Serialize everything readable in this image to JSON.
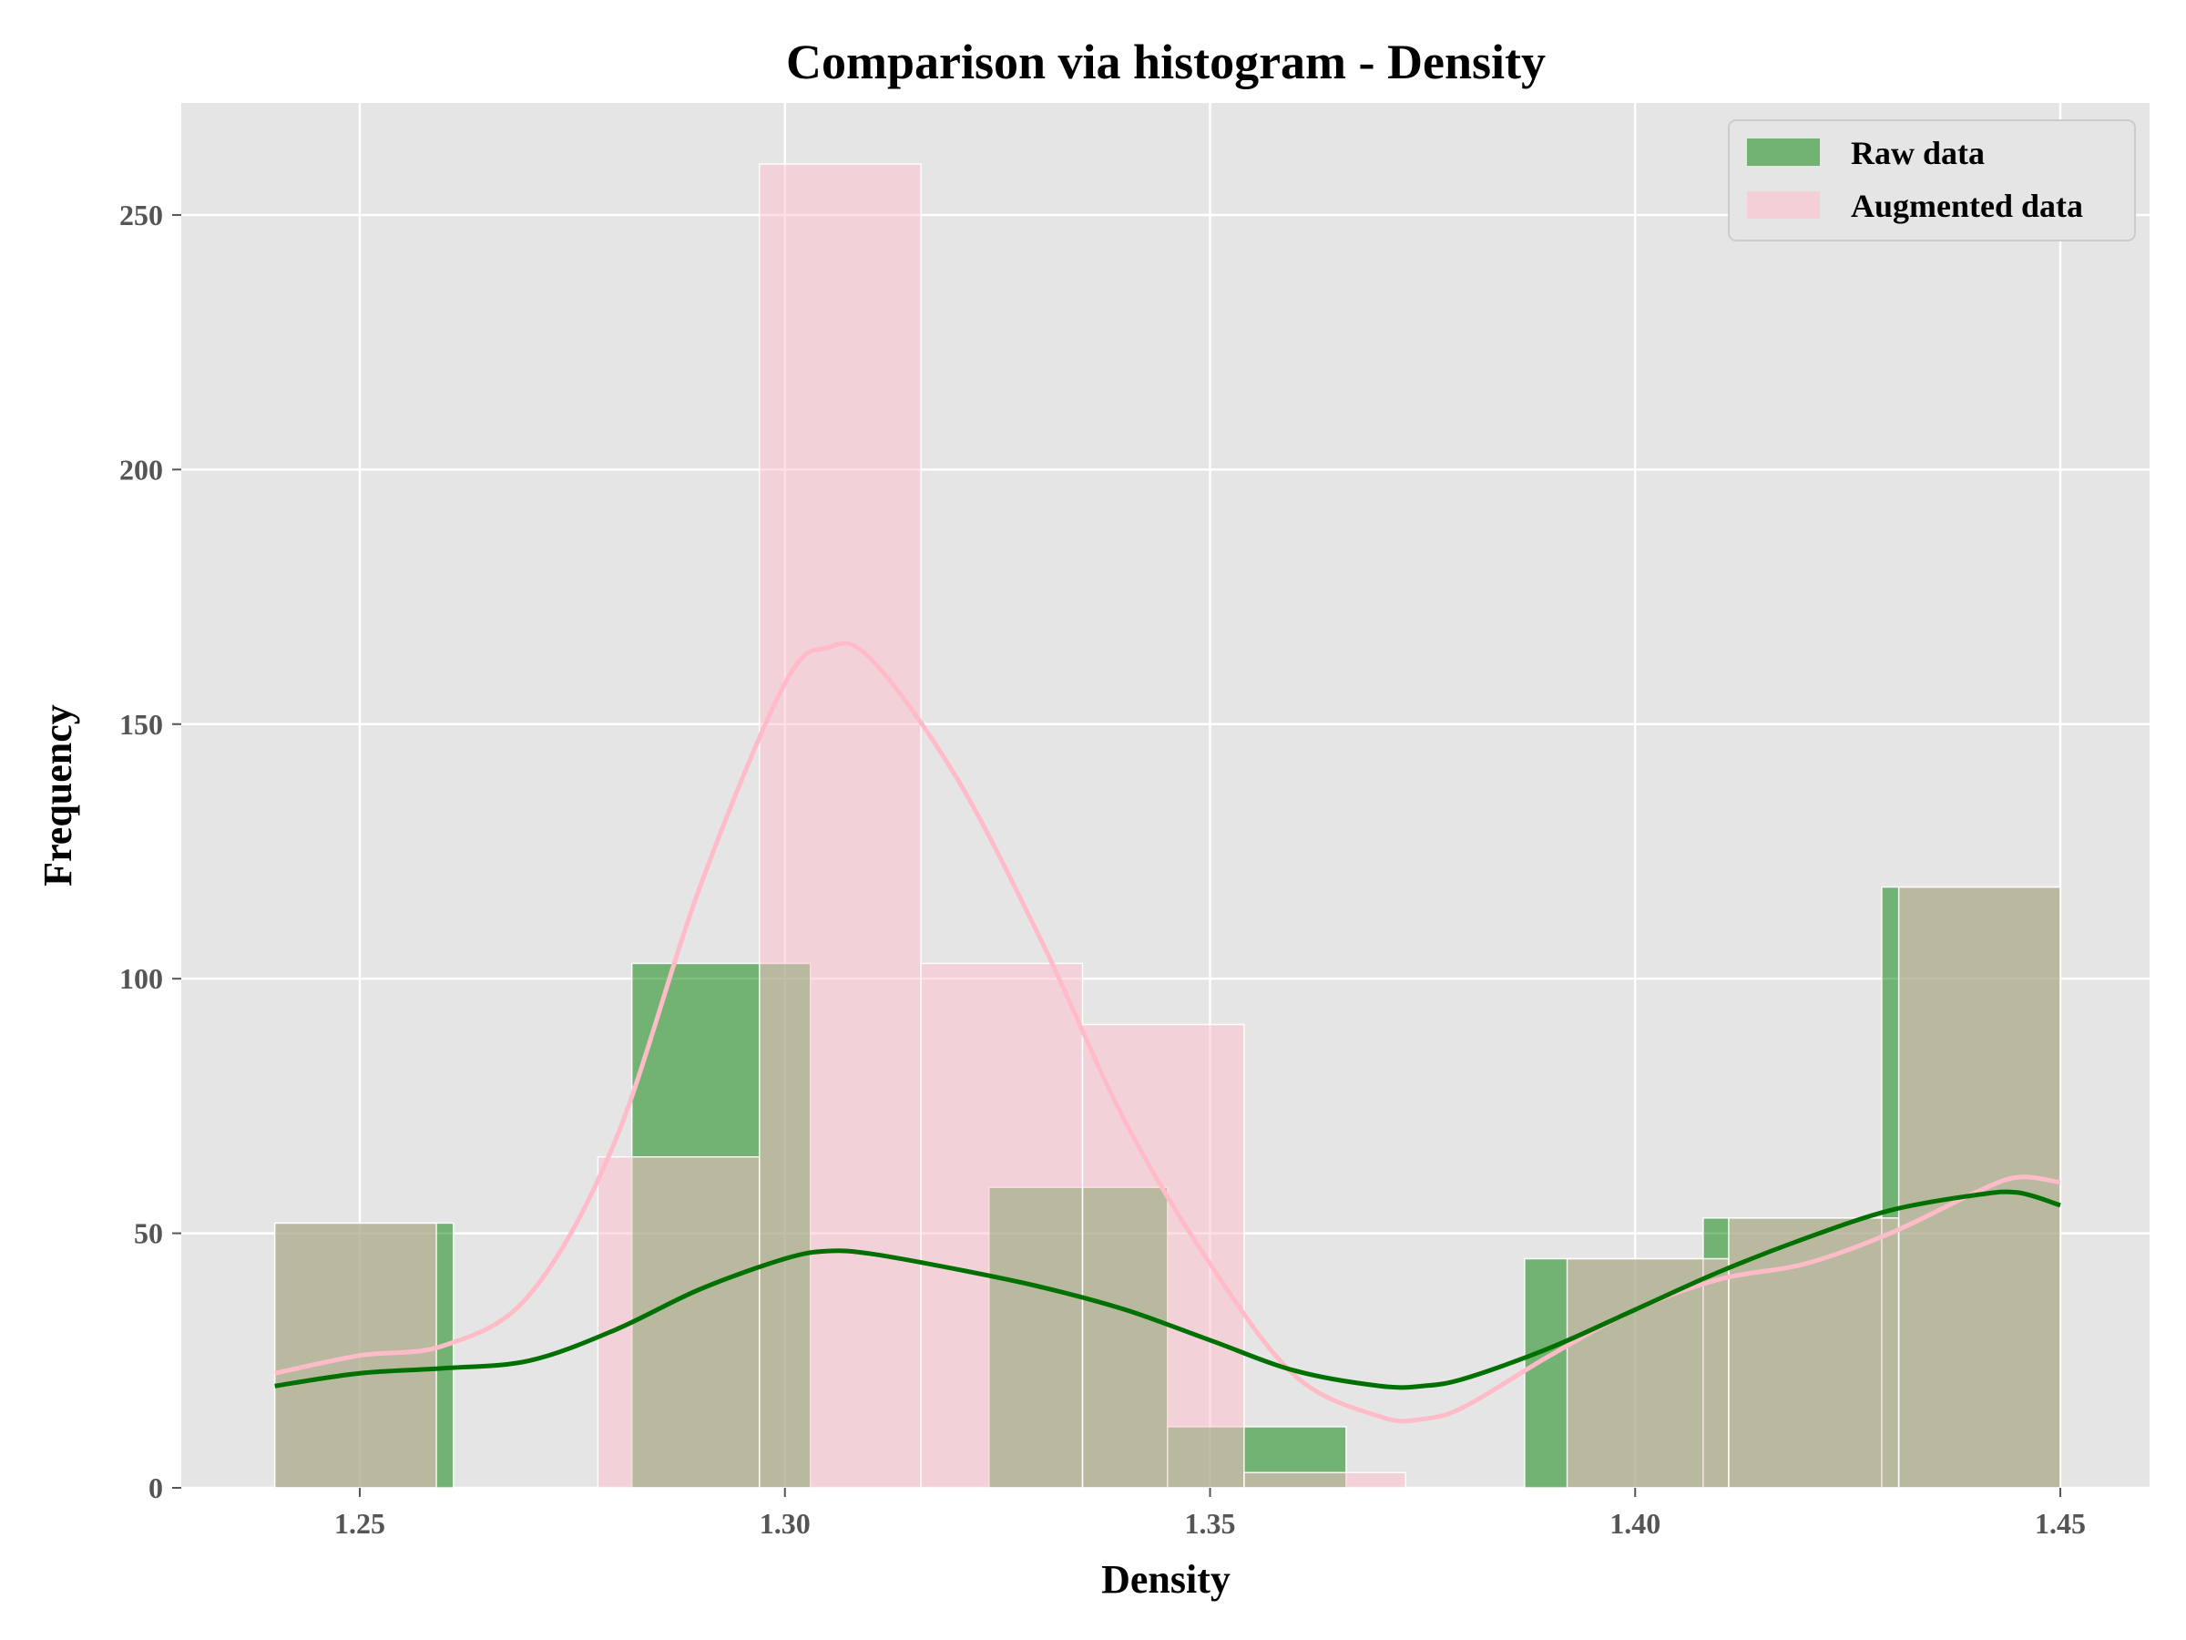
{
  "chart_data": {
    "type": "histogram",
    "title": "Comparison via histogram - Density",
    "xlabel": "Density",
    "ylabel": "Frequency",
    "xlim": [
      1.229,
      1.4605
    ],
    "ylim": [
      0,
      272
    ],
    "xticks": [
      1.25,
      1.3,
      1.35,
      1.4,
      1.45
    ],
    "xtick_labels": [
      "1.25",
      "1.30",
      "1.35",
      "1.40",
      "1.45"
    ],
    "yticks": [
      0,
      50,
      100,
      150,
      200,
      250
    ],
    "ytick_labels": [
      "0",
      "50",
      "100",
      "150",
      "200",
      "250"
    ],
    "grid": true,
    "legend_position": "top-right",
    "colors": {
      "background": "#e5e5e5",
      "grid": "#ffffff",
      "raw": "#008000",
      "augmented": "#ffc0cb",
      "raw_kde": "#007000",
      "augmented_kde": "#ffbcc8"
    },
    "series": [
      {
        "name": "Raw data",
        "kind": "histogram",
        "bins": [
          {
            "x0": 1.24,
            "x1": 1.261,
            "count": 52
          },
          {
            "x0": 1.282,
            "x1": 1.303,
            "count": 103
          },
          {
            "x0": 1.324,
            "x1": 1.345,
            "count": 59
          },
          {
            "x0": 1.345,
            "x1": 1.366,
            "count": 12
          },
          {
            "x0": 1.387,
            "x1": 1.408,
            "count": 45
          },
          {
            "x0": 1.408,
            "x1": 1.429,
            "count": 53
          },
          {
            "x0": 1.429,
            "x1": 1.45,
            "count": 118
          }
        ],
        "kde": [
          [
            1.24,
            20
          ],
          [
            1.25,
            22.5
          ],
          [
            1.26,
            23.5
          ],
          [
            1.27,
            25
          ],
          [
            1.28,
            31
          ],
          [
            1.29,
            39
          ],
          [
            1.3,
            45
          ],
          [
            1.305,
            46.5
          ],
          [
            1.31,
            46
          ],
          [
            1.32,
            43
          ],
          [
            1.33,
            39.5
          ],
          [
            1.34,
            35
          ],
          [
            1.35,
            29
          ],
          [
            1.36,
            23
          ],
          [
            1.37,
            20
          ],
          [
            1.375,
            20
          ],
          [
            1.38,
            21.5
          ],
          [
            1.39,
            27.5
          ],
          [
            1.4,
            35
          ],
          [
            1.41,
            42.5
          ],
          [
            1.42,
            49
          ],
          [
            1.43,
            54.5
          ],
          [
            1.44,
            57.5
          ],
          [
            1.445,
            58
          ],
          [
            1.45,
            55.5
          ]
        ]
      },
      {
        "name": "Augmented data",
        "kind": "histogram",
        "bins": [
          {
            "x0": 1.24,
            "x1": 1.259,
            "count": 52
          },
          {
            "x0": 1.278,
            "x1": 1.297,
            "count": 65
          },
          {
            "x0": 1.297,
            "x1": 1.316,
            "count": 260
          },
          {
            "x0": 1.316,
            "x1": 1.335,
            "count": 103
          },
          {
            "x0": 1.335,
            "x1": 1.354,
            "count": 91
          },
          {
            "x0": 1.354,
            "x1": 1.373,
            "count": 3
          },
          {
            "x0": 1.392,
            "x1": 1.411,
            "count": 45
          },
          {
            "x0": 1.411,
            "x1": 1.431,
            "count": 53
          },
          {
            "x0": 1.431,
            "x1": 1.45,
            "count": 118
          }
        ],
        "kde": [
          [
            1.24,
            22.5
          ],
          [
            1.25,
            26
          ],
          [
            1.26,
            28
          ],
          [
            1.27,
            38
          ],
          [
            1.28,
            68
          ],
          [
            1.29,
            118
          ],
          [
            1.3,
            158
          ],
          [
            1.305,
            165
          ],
          [
            1.31,
            163
          ],
          [
            1.32,
            140
          ],
          [
            1.33,
            108
          ],
          [
            1.34,
            72
          ],
          [
            1.35,
            44
          ],
          [
            1.36,
            22
          ],
          [
            1.37,
            14
          ],
          [
            1.375,
            13.5
          ],
          [
            1.38,
            16
          ],
          [
            1.39,
            26
          ],
          [
            1.4,
            35
          ],
          [
            1.41,
            41
          ],
          [
            1.42,
            44
          ],
          [
            1.43,
            50
          ],
          [
            1.44,
            58
          ],
          [
            1.445,
            61
          ],
          [
            1.45,
            60
          ]
        ]
      }
    ]
  }
}
